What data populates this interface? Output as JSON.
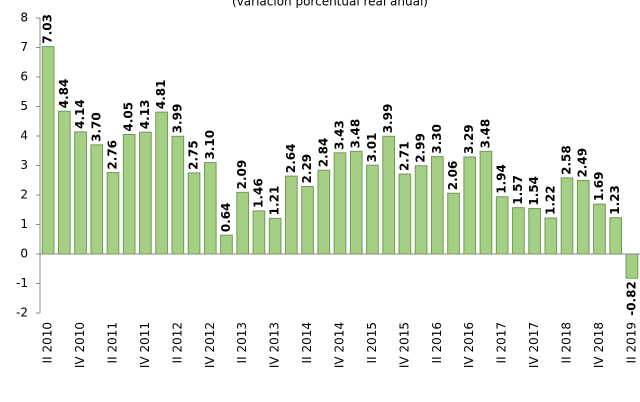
{
  "chart_data": {
    "type": "bar",
    "title": "(variación porcentual real anual)",
    "categories": [
      "II 2010",
      null,
      "IV 2010",
      null,
      "II 2011",
      null,
      "IV 2011",
      null,
      "II 2012",
      null,
      "IV 2012",
      null,
      "II 2013",
      null,
      "IV 2013",
      null,
      "II 2014",
      null,
      "IV 2014",
      null,
      "II 2015",
      null,
      "IV 2015",
      null,
      "II 2016",
      null,
      "IV 2016",
      null,
      "II 2017",
      null,
      "IV 2017",
      null,
      "II 2018",
      null,
      "IV 2018",
      null,
      "II 2019"
    ],
    "values": [
      7.03,
      4.84,
      4.14,
      3.7,
      2.76,
      4.05,
      4.13,
      4.81,
      3.99,
      2.75,
      3.1,
      0.64,
      2.09,
      1.46,
      1.21,
      2.64,
      2.29,
      2.84,
      3.43,
      3.48,
      3.01,
      3.99,
      2.71,
      2.99,
      3.3,
      2.06,
      3.29,
      3.48,
      1.94,
      1.57,
      1.54,
      1.22,
      2.58,
      2.49,
      1.69,
      1.23,
      -0.82
    ],
    "value_labels": [
      "7.03",
      "4.84",
      "4.14",
      "3.70",
      "2.76",
      "4.05",
      "4.13",
      "4.81",
      "3.99",
      "2.75",
      "3.10",
      "0.64",
      "2.09",
      "1.46",
      "1.21",
      "2.64",
      "2.29",
      "2.84",
      "3.43",
      "3.48",
      "3.01",
      "3.99",
      "2.71",
      "2.99",
      "3.30",
      "2.06",
      "3.29",
      "3.48",
      "1.94",
      "1.57",
      "1.54",
      "1.22",
      "2.58",
      "2.49",
      "1.69",
      "1.23",
      "-0.82"
    ],
    "color": "#a6cf86",
    "label_color": "#7cb650",
    "ylim": [
      -2,
      8
    ],
    "yticks": [
      -2,
      -1,
      0,
      1,
      2,
      3,
      4,
      5,
      6,
      7,
      8
    ]
  }
}
